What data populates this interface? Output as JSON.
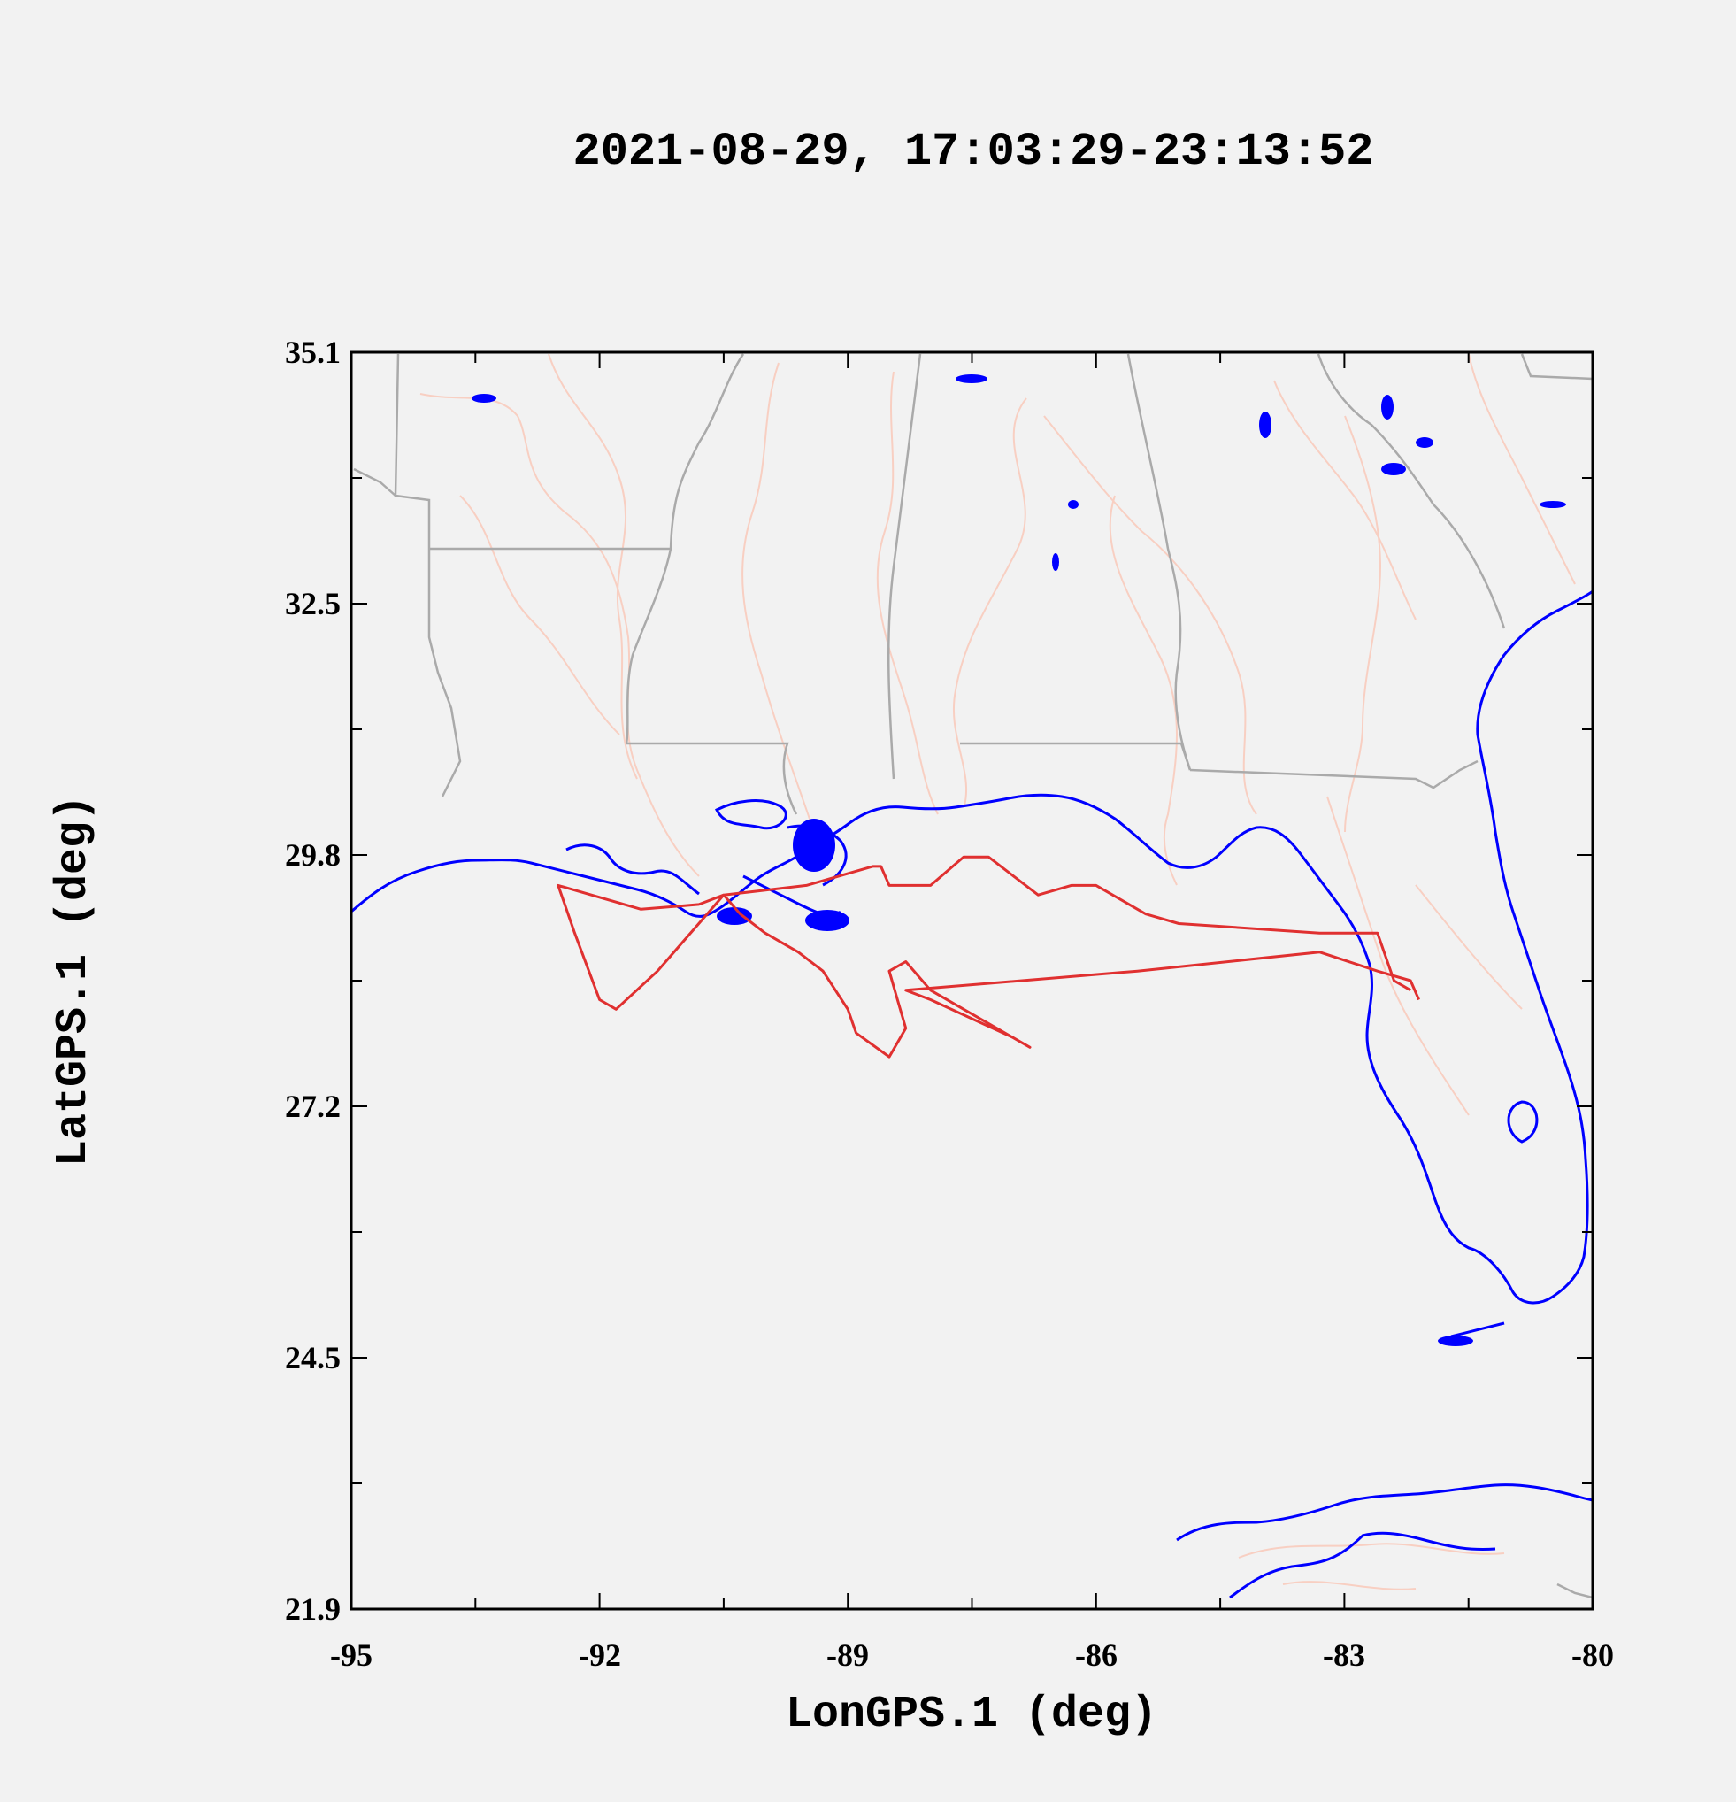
{
  "title": "2021-08-29, 17:03:29-23:13:52",
  "colors": {
    "background": "#f2f2f2",
    "coastline": "#0000ff",
    "borders": "#aaaaaa",
    "rivers": "#f8cfc2",
    "track": "#e03030",
    "axes": "#000000"
  },
  "chart_data": {
    "type": "line",
    "xlabel": "LonGPS.1 (deg)",
    "ylabel": "LatGPS.1 (deg)",
    "xlim": [
      -95,
      -80
    ],
    "ylim": [
      21.9,
      35.1
    ],
    "x_ticks": [
      "-95",
      "-92",
      "-89",
      "-86",
      "-83",
      "-80"
    ],
    "y_ticks": [
      "35.1",
      "32.5",
      "29.8",
      "27.2",
      "24.5",
      "21.9"
    ],
    "series": [
      {
        "x": [
          -82.2,
          -82.4,
          -82.6,
          -82.7,
          -83.3,
          -85.0,
          -85.4,
          -86.0,
          -86.3,
          -86.7,
          -87.3,
          -87.6,
          -88.0,
          -88.5,
          -88.6,
          -88.7,
          -89.5,
          -90.5,
          -90.8,
          -91.5,
          -92.5,
          -92.3,
          -92.0,
          -91.8,
          -91.3,
          -90.8,
          -90.5,
          -90.3,
          -90.0,
          -89.6,
          -89.3,
          -89.0,
          -88.9,
          -88.5,
          -88.3,
          -88.4,
          -88.5,
          -88.3,
          -88.0,
          -87.6,
          -87.2,
          -86.8,
          -87.0,
          -87.5,
          -88.0,
          -88.3,
          -85.5,
          -83.3,
          -82.6,
          -82.2,
          -82.1
        ],
        "y": [
          28.4,
          28.5,
          29.0,
          29.0,
          29.0,
          29.1,
          29.2,
          29.5,
          29.5,
          29.4,
          29.8,
          29.8,
          29.5,
          29.5,
          29.7,
          29.7,
          29.5,
          29.4,
          29.3,
          29.25,
          29.5,
          29.0,
          28.3,
          28.2,
          28.6,
          29.1,
          29.4,
          29.2,
          29.0,
          28.8,
          28.6,
          28.2,
          27.95,
          27.7,
          28.0,
          28.3,
          28.6,
          28.7,
          28.4,
          28.2,
          28.0,
          27.8,
          27.9,
          28.1,
          28.3,
          28.4,
          28.6,
          28.8,
          28.6,
          28.5,
          28.3
        ]
      }
    ]
  }
}
